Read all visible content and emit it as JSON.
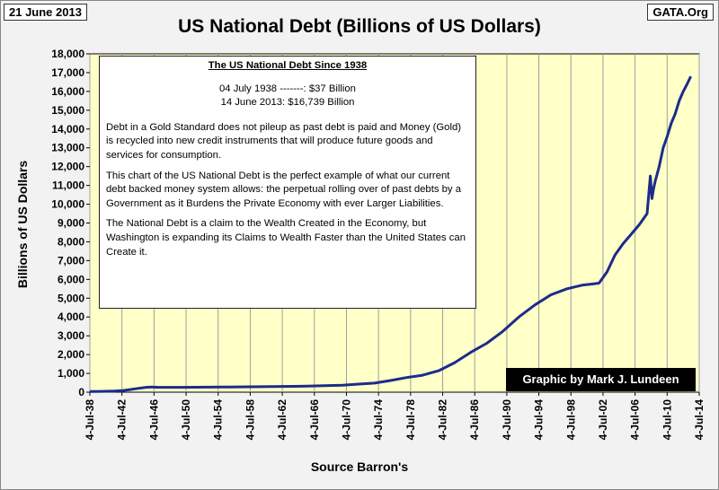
{
  "header": {
    "date": "21 June 2013",
    "source_site": "GATA.Org"
  },
  "annotation": {
    "heading": "The US National Debt Since 1938",
    "quote1": "04 July 1938 -------: $37 Billion",
    "quote2": "14 June 2013: $16,739 Billion",
    "para1": "Debt in a Gold Standard does not pileup as past debt is paid and Money (Gold) is recycled into new credit instruments that will produce future goods and services for consumption.",
    "para2": "This chart of the US National Debt is the perfect example of what our current debt backed money system allows: the perpetual rolling over of past debts by a Government as it Burdens the Private Economy with ever Larger Liabilities.",
    "para3": "The National Debt is a claim to the Wealth Created in the Economy, but Washington is expanding its Claims to Wealth Faster than the United States can Create it."
  },
  "credit": "Graphic by Mark J. Lundeen",
  "colors": {
    "plot_bg": "#ffffc8",
    "line": "#1c2b8a",
    "grid": "#a0a0a0"
  },
  "chart_data": {
    "type": "line",
    "title": "US National Debt (Billions of US Dollars)",
    "xlabel": "Source Barron's",
    "ylabel": "Billions of US Dollars",
    "xlim": [
      1938.5,
      2014.5
    ],
    "ylim": [
      0,
      18000
    ],
    "y_ticks": [
      0,
      1000,
      2000,
      3000,
      4000,
      5000,
      6000,
      7000,
      8000,
      9000,
      10000,
      11000,
      12000,
      13000,
      14000,
      15000,
      16000,
      17000,
      18000
    ],
    "y_tick_labels": [
      "0",
      "1,000",
      "2,000",
      "3,000",
      "4,000",
      "5,000",
      "6,000",
      "7,000",
      "8,000",
      "9,000",
      "10,000",
      "11,000",
      "12,000",
      "13,000",
      "14,000",
      "15,000",
      "16,000",
      "17,000",
      "18,000"
    ],
    "x_tick_labels": [
      "4-Jul-38",
      "4-Jul-42",
      "4-Jul-46",
      "4-Jul-50",
      "4-Jul-54",
      "4-Jul-58",
      "4-Jul-62",
      "4-Jul-66",
      "4-Jul-70",
      "4-Jul-74",
      "4-Jul-78",
      "4-Jul-82",
      "4-Jul-86",
      "4-Jul-90",
      "4-Jul-94",
      "4-Jul-98",
      "4-Jul-02",
      "4-Jul-06",
      "4-Jul-10",
      "4-Jul-14"
    ],
    "x_tick_positions": [
      1938.5,
      1942.5,
      1946.5,
      1950.5,
      1954.5,
      1958.5,
      1962.5,
      1966.5,
      1970.5,
      1974.5,
      1978.5,
      1982.5,
      1986.5,
      1990.5,
      1994.5,
      1998.5,
      2002.5,
      2006.5,
      2010.5,
      2014.5
    ],
    "grid": "vertical",
    "series": [
      {
        "name": "US National Debt",
        "x": [
          1938.5,
          1940,
          1941.5,
          1942.5,
          1943.5,
          1944.5,
          1945.5,
          1946.2,
          1947,
          1950,
          1955,
          1960,
          1965,
          1970,
          1972,
          1974,
          1976,
          1978,
          1980,
          1982,
          1984,
          1986,
          1988,
          1990,
          1992,
          1994,
          1996,
          1998,
          1999,
          2000,
          2001,
          2002,
          2003,
          2004,
          2005,
          2006,
          2007,
          2008,
          2008.4,
          2008.6,
          2008.8,
          2009,
          2009.5,
          2010,
          2010.5,
          2011,
          2011.5,
          2012,
          2012.5,
          2013,
          2013.45
        ],
        "values": [
          37,
          43,
          55,
          80,
          140,
          200,
          260,
          270,
          258,
          257,
          274,
          290,
          317,
          370,
          430,
          480,
          620,
          780,
          900,
          1140,
          1570,
          2120,
          2600,
          3230,
          4000,
          4640,
          5180,
          5500,
          5600,
          5700,
          5750,
          5800,
          6400,
          7300,
          7900,
          8400,
          8900,
          9500,
          11500,
          10300,
          10800,
          11200,
          12000,
          13000,
          13600,
          14300,
          14800,
          15500,
          16000,
          16400,
          16800
        ]
      }
    ]
  }
}
